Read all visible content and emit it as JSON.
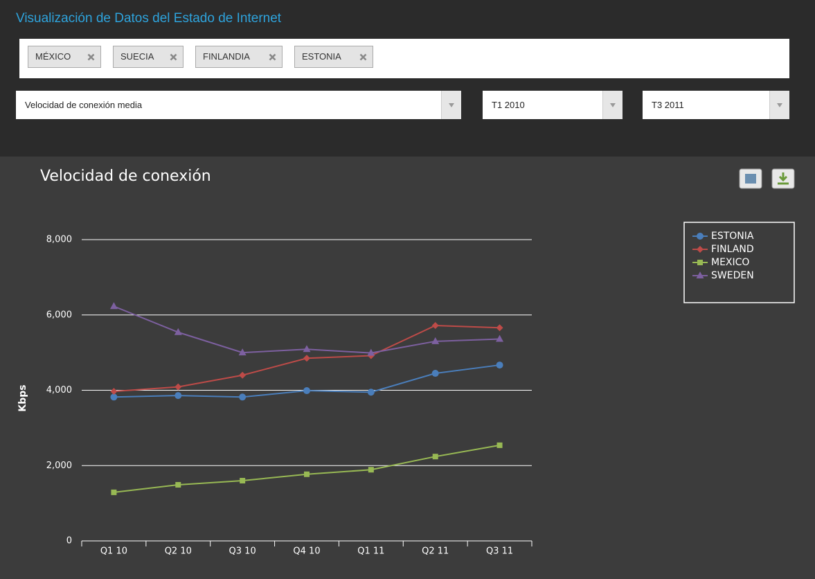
{
  "header": {
    "title": "Visualización de Datos del Estado de Internet"
  },
  "filters": {
    "tags": [
      "MÉXICO",
      "SUECIA",
      "FINLANDIA",
      "ESTONIA"
    ],
    "metric": "Velocidad de conexión media",
    "from": "T1 2010",
    "to": "T3 2011"
  },
  "chart_data": {
    "type": "line",
    "title": "Velocidad de conexión",
    "y_label": "Kbps",
    "categories": [
      "Q1 10",
      "Q2 10",
      "Q3 10",
      "Q4 10",
      "Q1 11",
      "Q2 11",
      "Q3 11"
    ],
    "ylim": [
      0,
      8000
    ],
    "yticks": [
      0,
      {
        "value": 2000,
        "label": "2,000"
      },
      {
        "value": 4000,
        "label": "4,000"
      },
      {
        "value": 6000,
        "label": "6,000"
      },
      {
        "value": 8000,
        "label": "8,000"
      }
    ],
    "grid": true,
    "legend": "upper right",
    "series": [
      {
        "name": "ESTONIA",
        "color": "#4a7ebb",
        "marker": "circle",
        "values": [
          3820,
          3860,
          3820,
          3990,
          3950,
          4450,
          4670
        ]
      },
      {
        "name": "FINLAND",
        "color": "#be4b48",
        "marker": "diamond",
        "values": [
          3970,
          4090,
          4400,
          4850,
          4920,
          5720,
          5660
        ]
      },
      {
        "name": "MEXICO",
        "color": "#98b954",
        "marker": "square",
        "values": [
          1290,
          1490,
          1600,
          1770,
          1890,
          2240,
          2540
        ]
      },
      {
        "name": "SWEDEN",
        "color": "#7d60a0",
        "marker": "triangle",
        "values": [
          6230,
          5540,
          5000,
          5090,
          4990,
          5300,
          5360
        ]
      }
    ]
  }
}
